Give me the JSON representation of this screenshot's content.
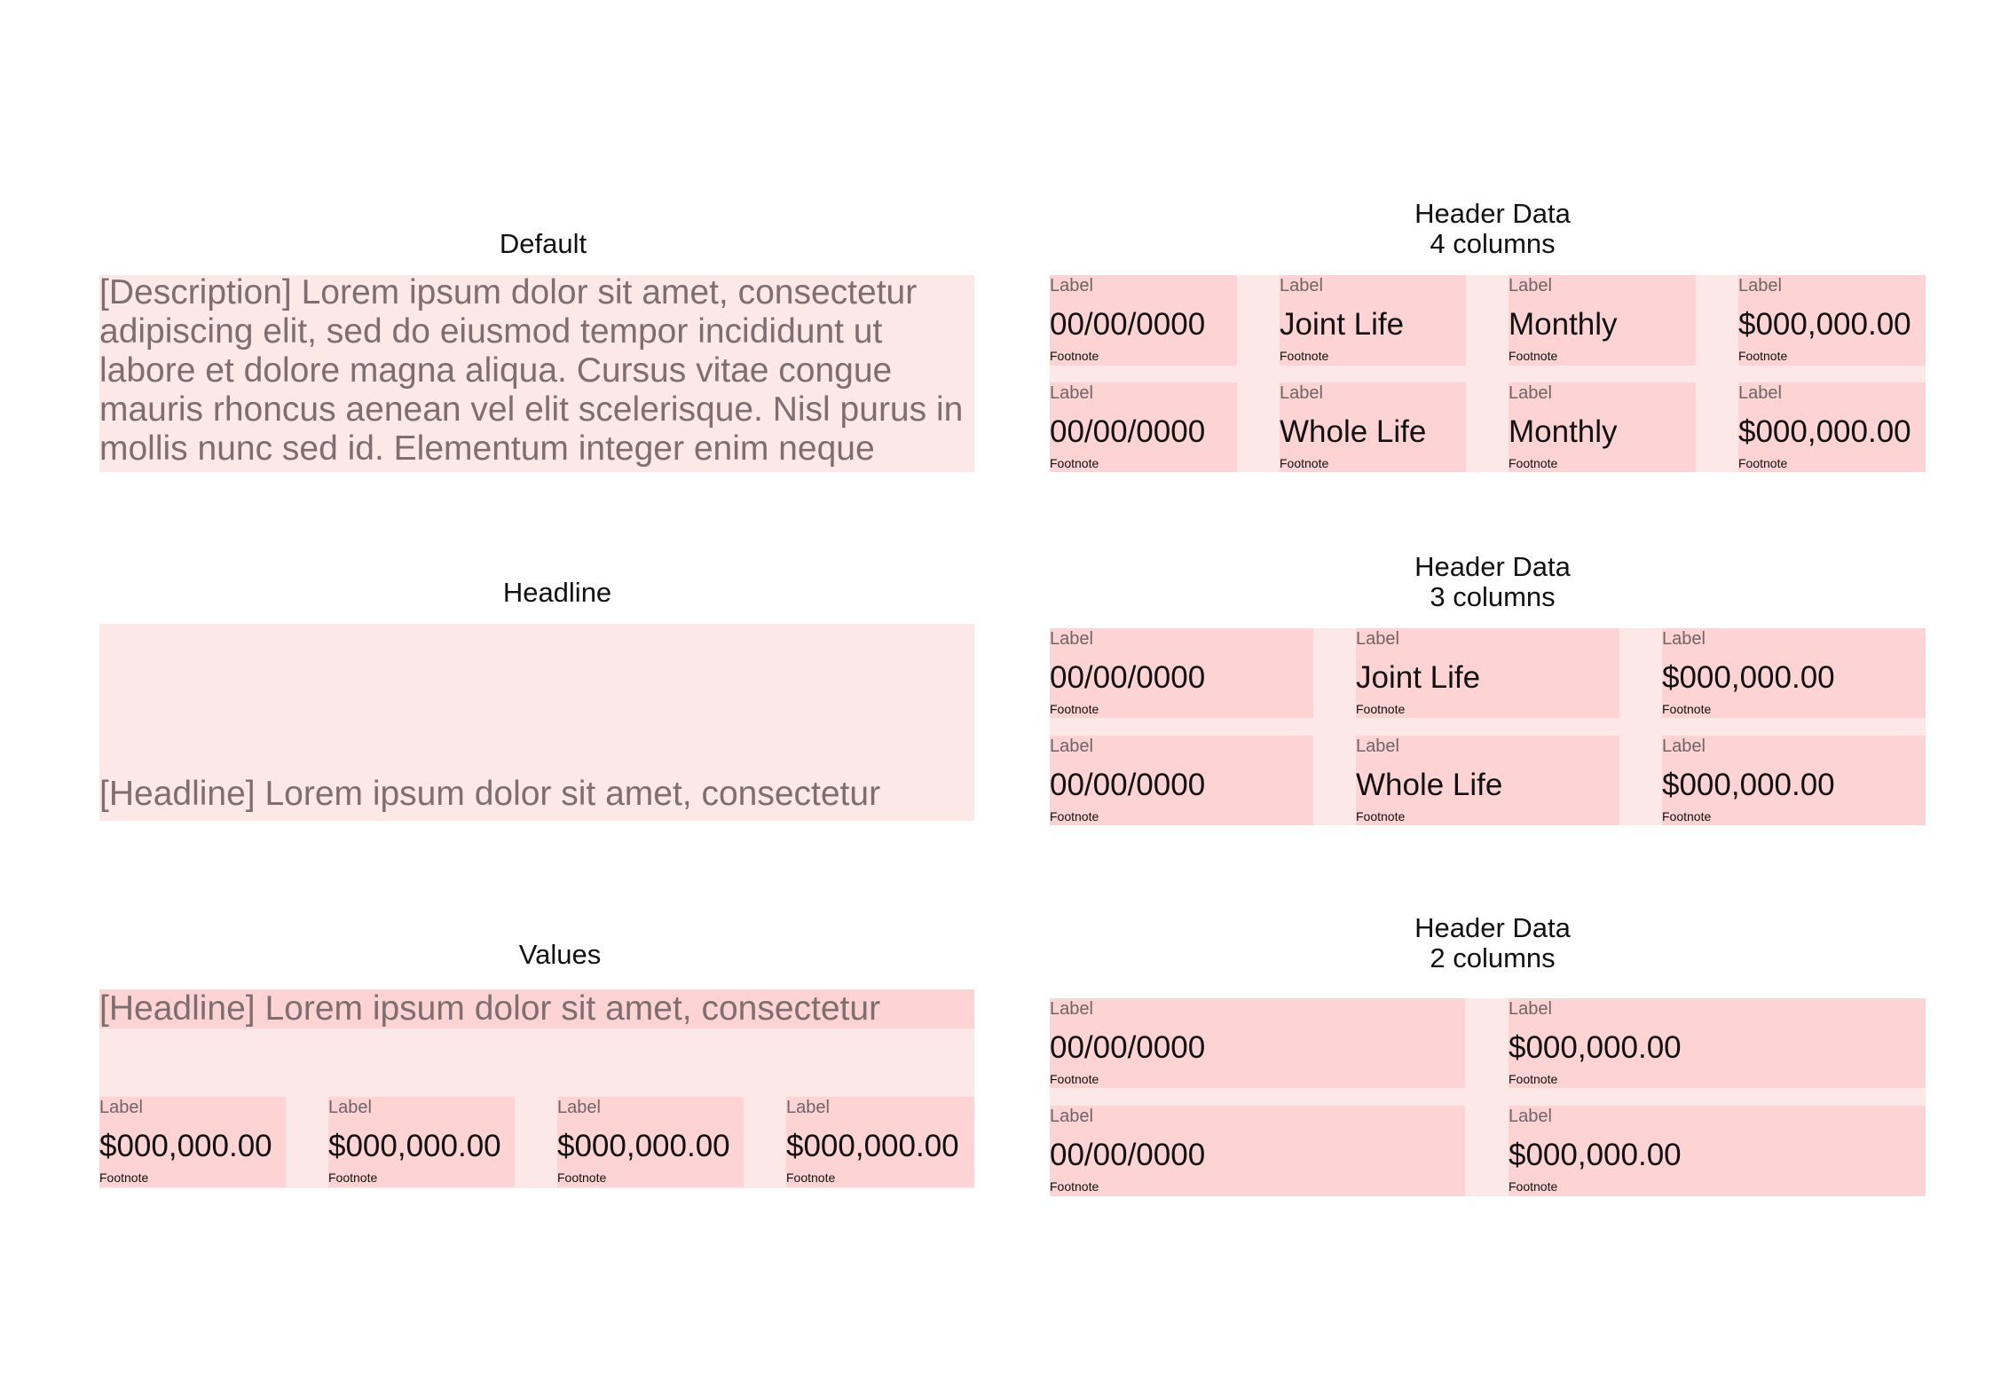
{
  "sections": {
    "default": {
      "title": "Default",
      "text": "[Description] Lorem ipsum dolor sit amet, consectetur adipiscing elit, sed do eiusmod tempor incididunt ut labore et dolore magna aliqua. Cursus vitae congue mauris rhoncus aenean vel elit scelerisque. Nisl purus in mollis nunc sed id. Elementum integer enim neque"
    },
    "headline": {
      "title": "Headline",
      "text": "[Headline] Lorem ipsum dolor sit amet, consectetur"
    },
    "values": {
      "title": "Values",
      "text": "[Headline] Lorem ipsum dolor sit amet, consectetur",
      "cells": [
        {
          "label": "Label",
          "value": "$000,000.00",
          "footnote": "Footnote"
        },
        {
          "label": "Label",
          "value": "$000,000.00",
          "footnote": "Footnote"
        },
        {
          "label": "Label",
          "value": "$000,000.00",
          "footnote": "Footnote"
        },
        {
          "label": "Label",
          "value": "$000,000.00",
          "footnote": "Footnote"
        }
      ]
    },
    "header4": {
      "title": "Header Data\n4 columns",
      "rows": [
        [
          {
            "label": "Label",
            "value": "00/00/0000",
            "footnote": "Footnote"
          },
          {
            "label": "Label",
            "value": "Joint Life",
            "footnote": "Footnote"
          },
          {
            "label": "Label",
            "value": "Monthly",
            "footnote": "Footnote"
          },
          {
            "label": "Label",
            "value": "$000,000.00",
            "footnote": "Footnote"
          }
        ],
        [
          {
            "label": "Label",
            "value": "00/00/0000",
            "footnote": "Footnote"
          },
          {
            "label": "Label",
            "value": "Whole Life",
            "footnote": "Footnote"
          },
          {
            "label": "Label",
            "value": "Monthly",
            "footnote": "Footnote"
          },
          {
            "label": "Label",
            "value": "$000,000.00",
            "footnote": "Footnote"
          }
        ]
      ]
    },
    "header3": {
      "title": "Header Data\n3 columns",
      "rows": [
        [
          {
            "label": "Label",
            "value": "00/00/0000",
            "footnote": "Footnote"
          },
          {
            "label": "Label",
            "value": "Joint Life",
            "footnote": "Footnote"
          },
          {
            "label": "Label",
            "value": "$000,000.00",
            "footnote": "Footnote"
          }
        ],
        [
          {
            "label": "Label",
            "value": "00/00/0000",
            "footnote": "Footnote"
          },
          {
            "label": "Label",
            "value": "Whole Life",
            "footnote": "Footnote"
          },
          {
            "label": "Label",
            "value": "$000,000.00",
            "footnote": "Footnote"
          }
        ]
      ]
    },
    "header2": {
      "title": "Header Data\n2 columns",
      "rows": [
        [
          {
            "label": "Label",
            "value": "00/00/0000",
            "footnote": "Footnote"
          },
          {
            "label": "Label",
            "value": "$000,000.00",
            "footnote": "Footnote"
          }
        ],
        [
          {
            "label": "Label",
            "value": "00/00/0000",
            "footnote": "Footnote"
          },
          {
            "label": "Label",
            "value": "$000,000.00",
            "footnote": "Footnote"
          }
        ]
      ]
    }
  }
}
